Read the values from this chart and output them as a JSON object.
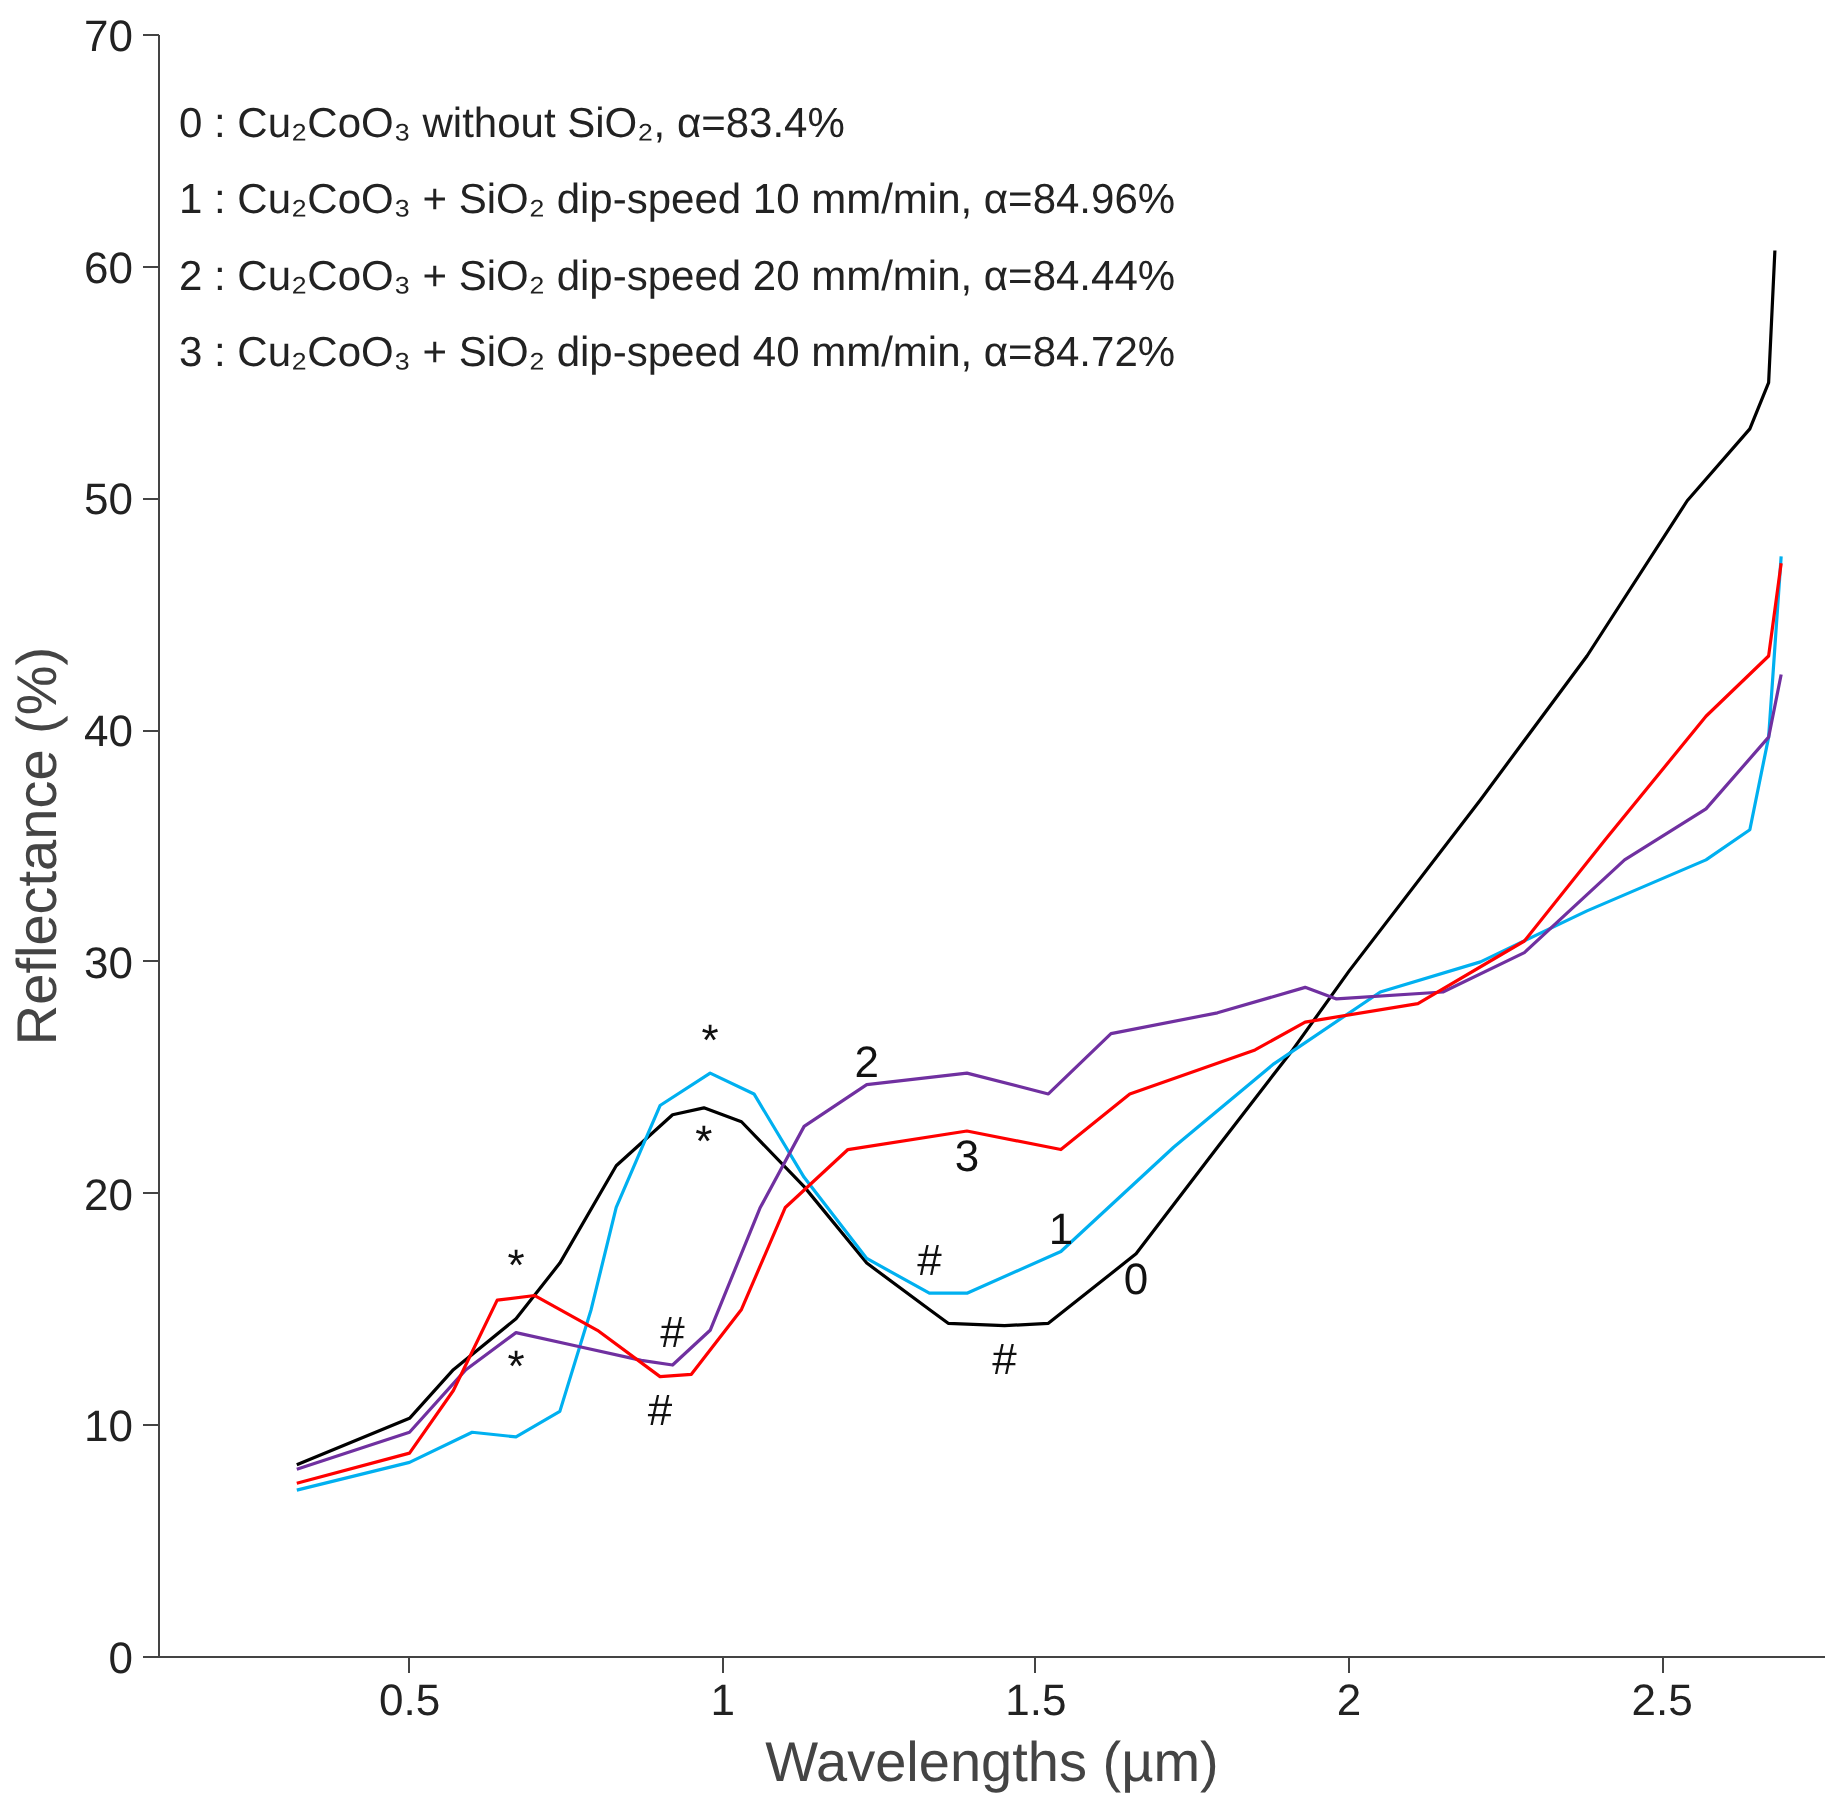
{
  "chart_data": {
    "type": "line",
    "xlabel": "Wavelengths (µm)",
    "ylabel": "Reflectance (%)",
    "xlim": [
      0.1,
      2.76
    ],
    "ylim": [
      0,
      70
    ],
    "xticks": [
      0.5,
      1,
      1.5,
      2,
      2.5
    ],
    "yticks": [
      0,
      10,
      20,
      30,
      40,
      50,
      60,
      70
    ],
    "grid": false,
    "series": [
      {
        "color": "#000000",
        "x": [
          0.32,
          0.5,
          0.57,
          0.67,
          0.74,
          0.83,
          0.92,
          0.97,
          1.03,
          1.13,
          1.23,
          1.33,
          1.36,
          1.45,
          1.52,
          1.66,
          1.79,
          1.91,
          2.0,
          2.21,
          2.38,
          2.54,
          2.64,
          2.67,
          2.68
        ],
        "values": [
          8.3,
          10.3,
          12.4,
          14.6,
          17,
          21.2,
          23.4,
          23.7,
          23.1,
          20.3,
          17,
          15,
          14.4,
          14.3,
          14.4,
          17.4,
          22,
          26.2,
          29.6,
          37,
          43.2,
          49.9,
          53,
          55,
          60.7
        ]
      },
      {
        "color": "#00b0f0",
        "x": [
          0.32,
          0.5,
          0.6,
          0.67,
          0.74,
          0.79,
          0.83,
          0.9,
          0.98,
          1.05,
          1.13,
          1.23,
          1.33,
          1.39,
          1.54,
          1.72,
          1.88,
          2.05,
          2.21,
          2.38,
          2.57,
          2.64,
          2.67,
          2.69
        ],
        "values": [
          7.2,
          8.4,
          9.7,
          9.5,
          10.6,
          15,
          19.4,
          23.8,
          25.2,
          24.3,
          20.7,
          17.2,
          15.7,
          15.7,
          17.5,
          22,
          25.6,
          28.7,
          30,
          32.2,
          34.4,
          35.7,
          39.7,
          47.5
        ]
      },
      {
        "color": "#7030a0",
        "x": [
          0.32,
          0.5,
          0.59,
          0.67,
          0.77,
          0.87,
          0.92,
          0.98,
          1.06,
          1.13,
          1.23,
          1.39,
          1.52,
          1.62,
          1.79,
          1.93,
          1.98,
          2.15,
          2.28,
          2.44,
          2.57,
          2.67,
          2.69
        ],
        "values": [
          8.1,
          9.7,
          12.4,
          14.0,
          13.4,
          12.8,
          12.6,
          14.1,
          19.4,
          22.9,
          24.7,
          25.2,
          24.3,
          26.9,
          27.8,
          28.9,
          28.4,
          28.7,
          30.4,
          34.4,
          36.6,
          39.7,
          42.4
        ]
      },
      {
        "color": "#ff0000",
        "x": [
          0.32,
          0.5,
          0.57,
          0.64,
          0.7,
          0.8,
          0.9,
          0.95,
          1.03,
          1.1,
          1.2,
          1.39,
          1.54,
          1.65,
          1.85,
          1.93,
          2.11,
          2.28,
          2.41,
          2.57,
          2.67,
          2.69
        ],
        "values": [
          7.5,
          8.8,
          11.5,
          15.4,
          15.6,
          14.1,
          12.1,
          12.2,
          15,
          19.4,
          21.9,
          22.7,
          21.9,
          24.3,
          26.2,
          27.4,
          28.2,
          30.9,
          35.3,
          40.6,
          43.2,
          47.2
        ]
      }
    ],
    "annotations": [
      "0 : Cu₂CoO₃ without SiO₂, α=83.4%",
      "1 : Cu₂CoO₃ + SiO₂ dip-speed 10 mm/min, α=84.96%",
      "2 : Cu₂CoO₃ + SiO₂ dip-speed 20 mm/min, α=84.44%",
      "3 : Cu₂CoO₃ + SiO₂ dip-speed 40 mm/min, α=84.72%",
      {
        "text": "*",
        "x": 0.67,
        "y": 15.5
      },
      {
        "text": "*",
        "x": 0.67,
        "y": 14.0
      },
      {
        "text": "*",
        "x": 0.98,
        "y": 25.2
      },
      {
        "text": "*",
        "x": 0.97,
        "y": 23.7
      },
      {
        "text": "#",
        "x": 0.92,
        "y": 12.6
      },
      {
        "text": "#",
        "x": 0.9,
        "y": 12.1
      },
      {
        "text": "#",
        "x": 1.33,
        "y": 15.7
      },
      {
        "text": "#",
        "x": 1.45,
        "y": 14.3
      },
      {
        "text": "2",
        "x": 1.23,
        "y": 24.7
      },
      {
        "text": "3",
        "x": 1.39,
        "y": 22.7
      },
      {
        "text": "1",
        "x": 1.54,
        "y": 17.5
      },
      {
        "text": "0",
        "x": 1.66,
        "y": 17.4
      }
    ]
  }
}
